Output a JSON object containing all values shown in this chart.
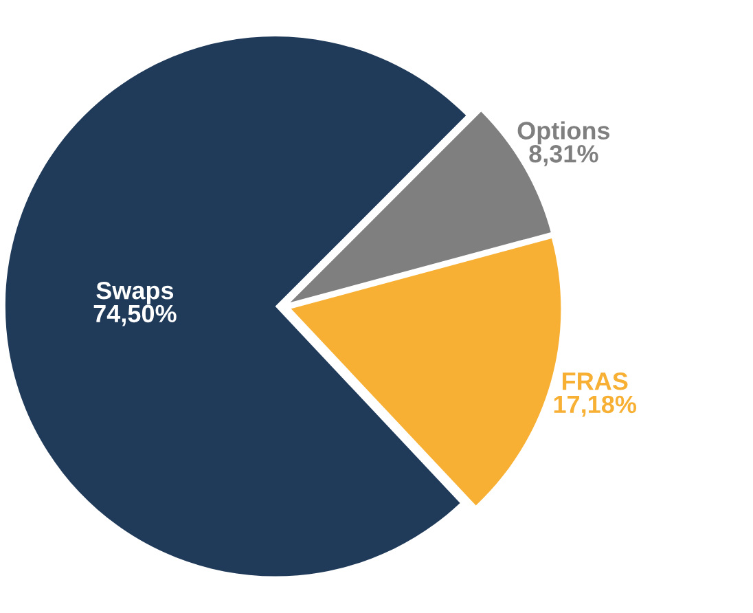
{
  "chart_data": {
    "type": "pie",
    "categories": [
      "Options",
      "FRAS",
      "Swaps"
    ],
    "values": [
      8.31,
      17.18,
      74.5
    ],
    "value_labels": [
      "8,31%",
      "17,18%",
      "74,50%"
    ],
    "colors": [
      "#7f7f7f",
      "#f7b033",
      "#203a5a"
    ],
    "legend": false
  }
}
